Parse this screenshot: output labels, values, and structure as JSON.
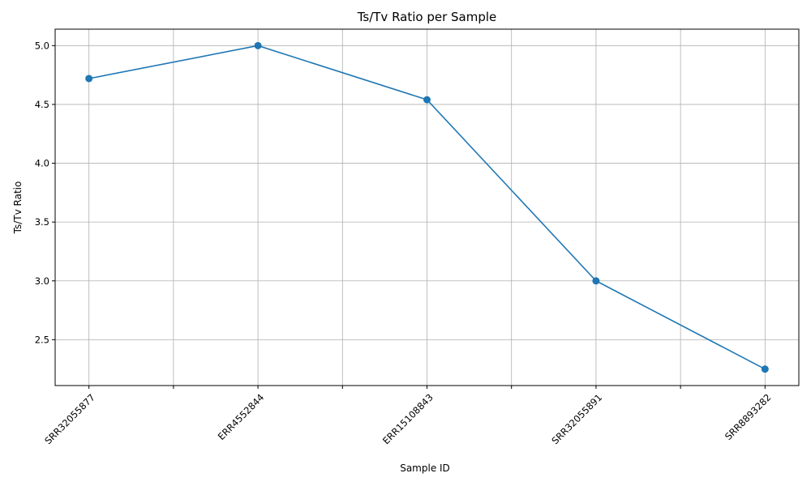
{
  "chart_data": {
    "type": "line",
    "title": "Ts/Tv Ratio per Sample",
    "xlabel": "Sample ID",
    "ylabel": "Ts/Tv Ratio",
    "categories": [
      "SRR32055877",
      "ERR4552844",
      "ERR15108843",
      "SRR32055891",
      "SRR8893282"
    ],
    "series": [
      {
        "values": [
          4.72,
          5.0,
          4.54,
          3.0,
          2.25
        ]
      }
    ],
    "ylim": [
      2.11,
      5.14
    ],
    "yticks": [
      2.5,
      3.0,
      3.5,
      4.0,
      4.5,
      5.0
    ],
    "ytick_labels": [
      "2.5",
      "3.0",
      "3.5",
      "4.0",
      "4.5",
      "5.0"
    ],
    "grid": true,
    "marker": "circle",
    "color": "#1f77b4"
  }
}
